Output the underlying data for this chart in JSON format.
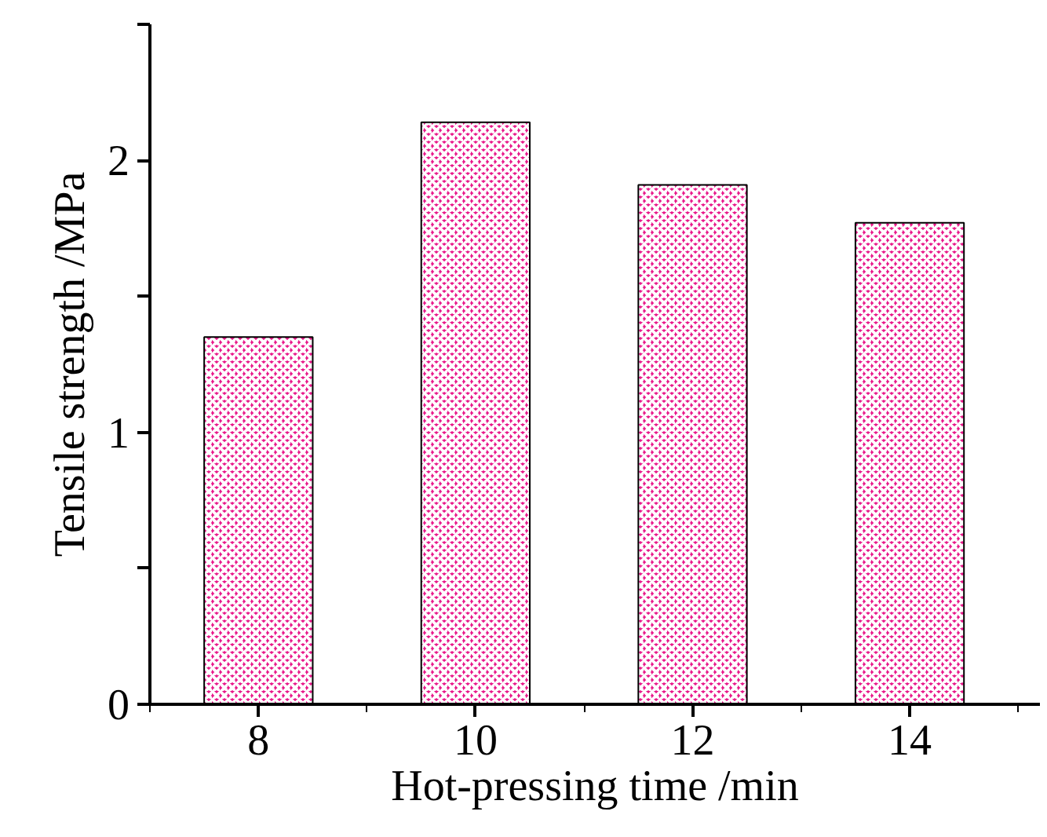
{
  "chart_data": {
    "type": "bar",
    "xlabel": "Hot-pressing time /min",
    "ylabel": "Tensile strength /MPa",
    "categories": [
      "8",
      "10",
      "12",
      "14"
    ],
    "values": [
      1.35,
      2.14,
      1.91,
      1.77
    ],
    "color": "#e8198b",
    "ylim": [
      0,
      2.5
    ],
    "yticks": [
      0,
      {
        "value": 0.5,
        "label": null
      },
      1,
      {
        "value": 1.5,
        "label": null
      },
      2,
      {
        "value": 2.5,
        "label": null
      }
    ],
    "grid": false
  }
}
